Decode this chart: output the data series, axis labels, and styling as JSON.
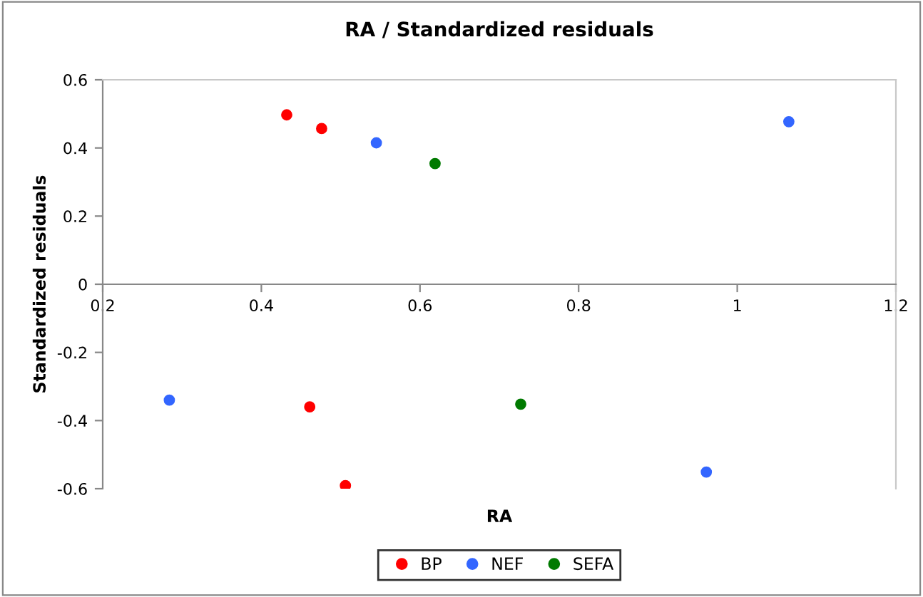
{
  "chart_data": {
    "type": "scatter",
    "title": "RA / Standardized residuals",
    "xlabel": "RA",
    "ylabel": "Standardized residuals",
    "xlim": [
      0.2,
      1.2
    ],
    "xticks": [
      0.2,
      0.4,
      0.6,
      0.8,
      1,
      1.2
    ],
    "ylim": [
      -0.6,
      0.6
    ],
    "yticks": [
      -0.6,
      -0.4,
      -0.2,
      0,
      0.2,
      0.4,
      0.6
    ],
    "grid": false,
    "legend": "bottom",
    "marker": "circle",
    "series": [
      {
        "name": "BP",
        "color": "#ff0000",
        "x": [
          0.432,
          0.476,
          0.461,
          0.506
        ],
        "values": [
          0.497,
          0.457,
          -0.36,
          -0.591
        ]
      },
      {
        "name": "NEF",
        "color": "#3366ff",
        "x": [
          0.545,
          1.065,
          0.284,
          0.961
        ],
        "values": [
          0.415,
          0.477,
          -0.34,
          -0.551
        ]
      },
      {
        "name": "SEFA",
        "color": "#007a00",
        "x": [
          0.619,
          0.727
        ],
        "values": [
          0.354,
          -0.352
        ]
      }
    ]
  }
}
